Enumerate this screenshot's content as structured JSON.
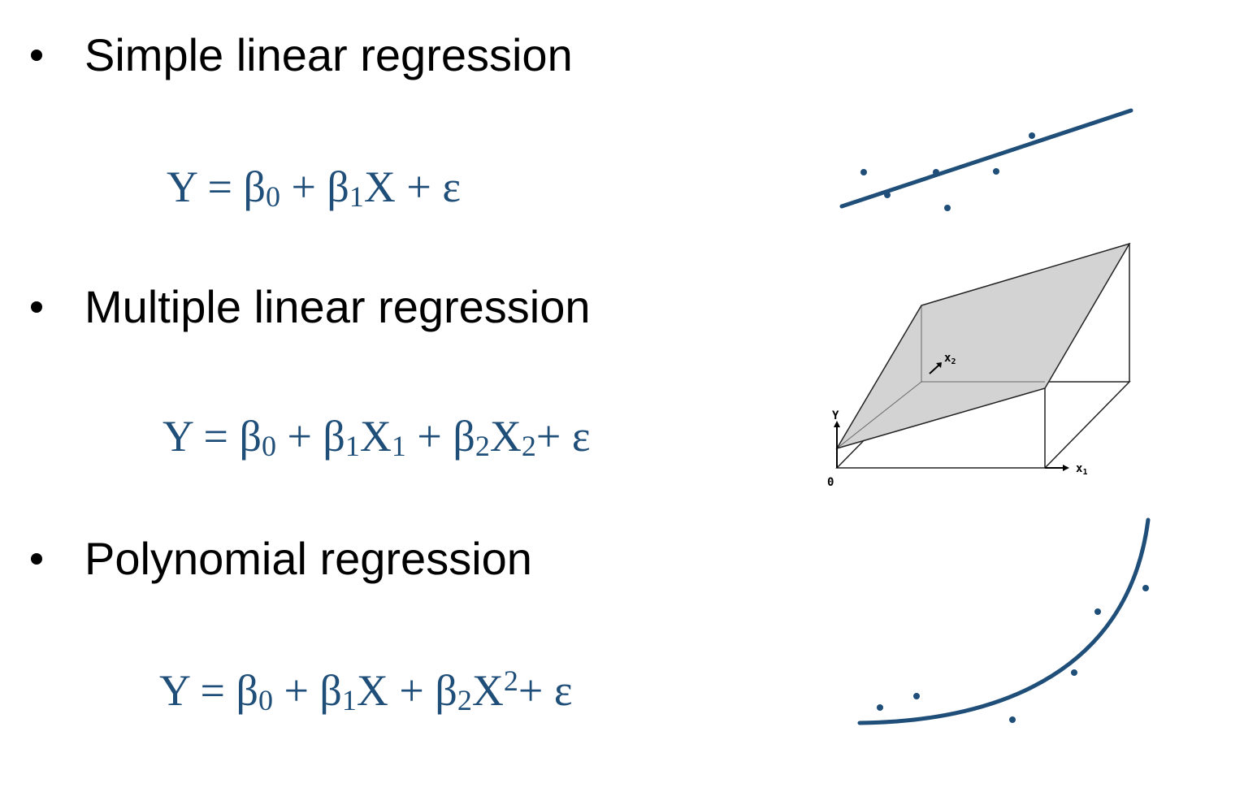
{
  "bullets": {
    "simple": {
      "label": "Simple linear regression"
    },
    "multiple": {
      "label": "Multiple linear regression"
    },
    "polynomial": {
      "label": "Polynomial regression"
    }
  },
  "equations": {
    "simple": {
      "y": "Y",
      "eq": "=",
      "beta": "β",
      "sub0": "0",
      "plus": "+",
      "sub1": "1",
      "x": "X",
      "eps": "ε"
    },
    "multiple": {
      "y": "Y",
      "eq": "=",
      "beta": "β",
      "sub0": "0",
      "plus": "+",
      "sub1": "1",
      "sub2": "2",
      "x": "X",
      "x_sub1": "1",
      "x_sub2": "2",
      "eps": "ε"
    },
    "polynomial": {
      "y": "Y",
      "eq": "=",
      "beta": "β",
      "sub0": "0",
      "plus": "+",
      "sub1": "1",
      "sub2": "2",
      "x": "X",
      "sup2": "2",
      "eps": "ε"
    }
  },
  "plane_figure": {
    "axis_y_label": "Y",
    "axis_x1_label": "x",
    "axis_x1_sub": "1",
    "axis_x2_label": "x",
    "axis_x2_sub": "2",
    "origin_label": "0"
  },
  "colors": {
    "equation": "#1f4e79",
    "curve": "#1f4e79",
    "plane_fill": "#d3d3d3"
  }
}
